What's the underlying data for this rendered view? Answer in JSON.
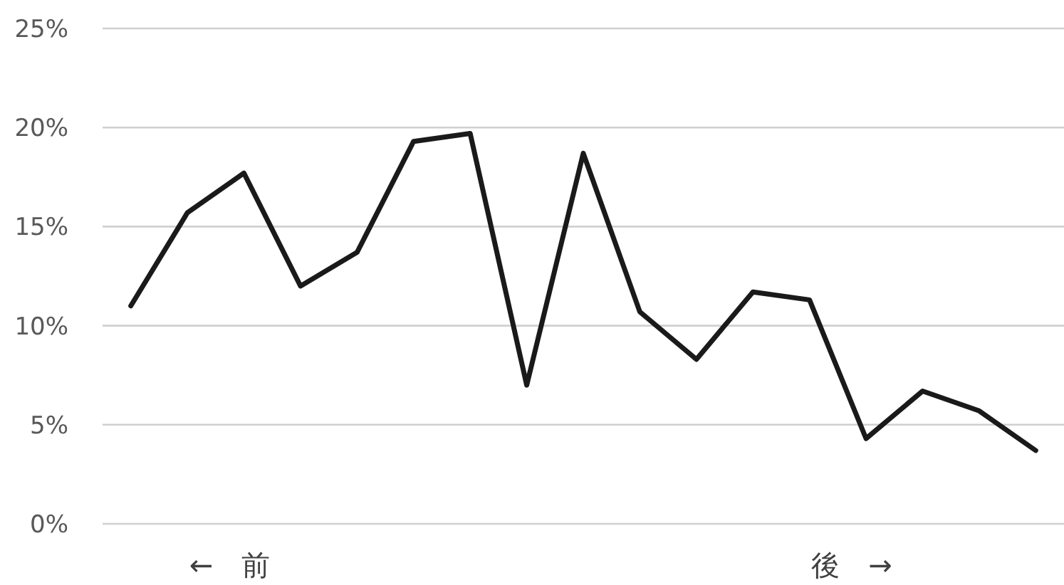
{
  "chart_data": {
    "type": "line",
    "categories": [
      null,
      null,
      "←　前",
      null,
      null,
      null,
      null,
      null,
      null,
      null,
      null,
      null,
      null,
      "後　→",
      null,
      null,
      null
    ],
    "series": [
      {
        "color": "#1a1a1a",
        "values": [
          11.0,
          15.7,
          17.7,
          12.0,
          13.7,
          19.3,
          19.7,
          7.0,
          18.7,
          10.7,
          8.3,
          11.7,
          11.3,
          4.3,
          6.7,
          5.7,
          3.7
        ]
      }
    ],
    "ylim": [
      0,
      25
    ],
    "yticks": [
      {
        "value": 0,
        "label": "0%"
      },
      {
        "value": 5,
        "label": "5%"
      },
      {
        "value": 10,
        "label": "10%"
      },
      {
        "value": 15,
        "label": "15%"
      },
      {
        "value": 20,
        "label": "20%"
      },
      {
        "value": 25,
        "label": "25%"
      }
    ],
    "grid": "y",
    "marker": "none",
    "line_style": "solid"
  }
}
